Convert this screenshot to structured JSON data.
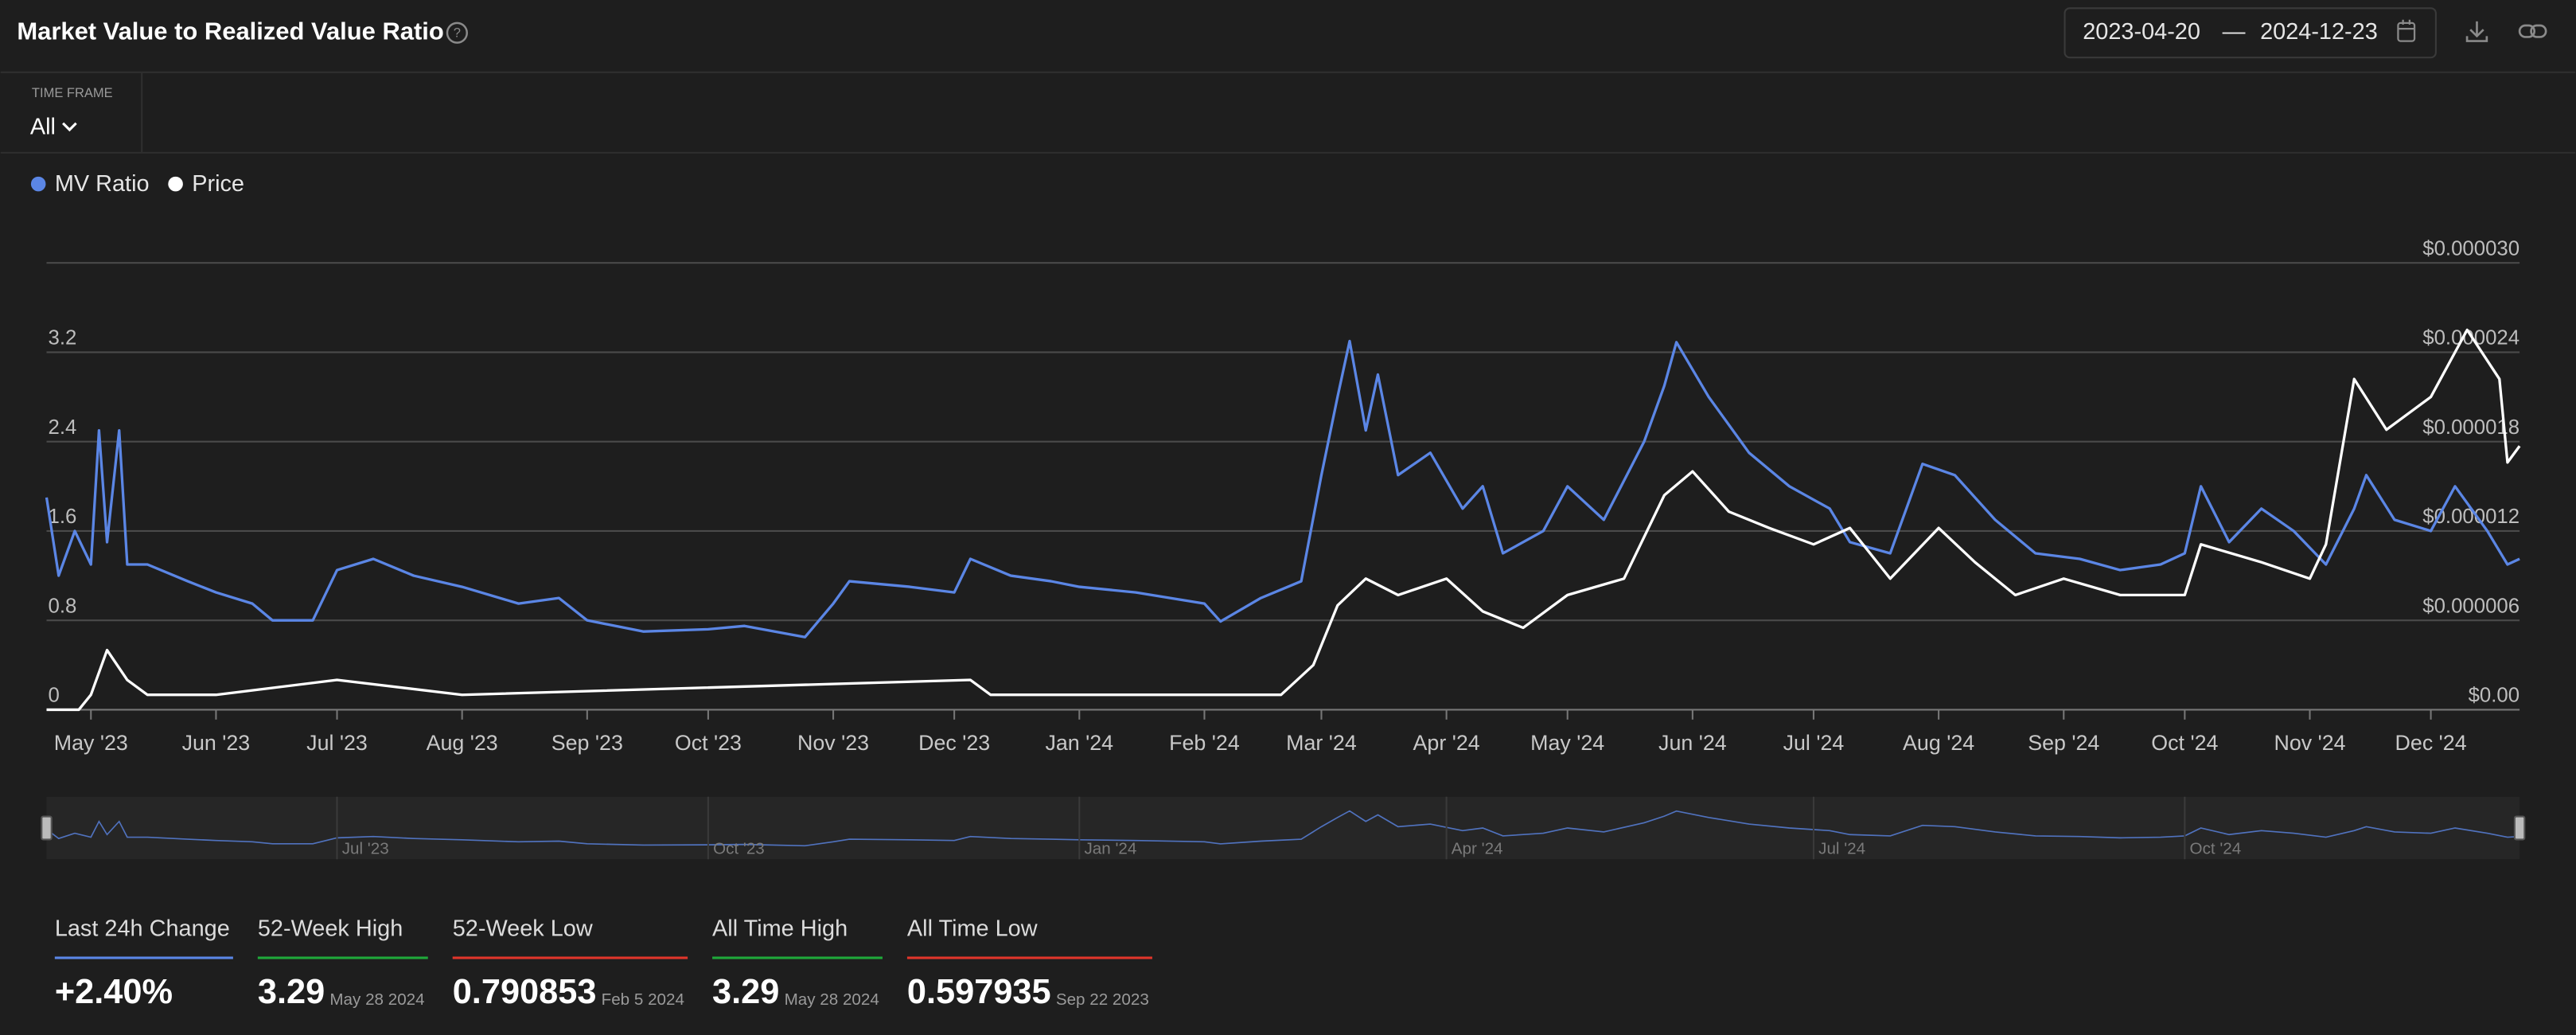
{
  "header": {
    "title": "Market Value to Realized Value Ratio",
    "date_start": "2023-04-20",
    "date_separator": "—",
    "date_end": "2024-12-23"
  },
  "timeframe": {
    "label": "TIME FRAME",
    "value": "All"
  },
  "chart_data": {
    "type": "line",
    "xlim": [
      "2023-04-20",
      "2024-12-23"
    ],
    "xticks": [
      {
        "value": "2023-05-01",
        "label": "May '23"
      },
      {
        "value": "2023-06-01",
        "label": "Jun '23"
      },
      {
        "value": "2023-07-01",
        "label": "Jul '23"
      },
      {
        "value": "2023-08-01",
        "label": "Aug '23"
      },
      {
        "value": "2023-09-01",
        "label": "Sep '23"
      },
      {
        "value": "2023-10-01",
        "label": "Oct '23"
      },
      {
        "value": "2023-11-01",
        "label": "Nov '23"
      },
      {
        "value": "2023-12-01",
        "label": "Dec '23"
      },
      {
        "value": "2024-01-01",
        "label": "Jan '24"
      },
      {
        "value": "2024-02-01",
        "label": "Feb '24"
      },
      {
        "value": "2024-03-01",
        "label": "Mar '24"
      },
      {
        "value": "2024-04-01",
        "label": "Apr '24"
      },
      {
        "value": "2024-05-01",
        "label": "May '24"
      },
      {
        "value": "2024-06-01",
        "label": "Jun '24"
      },
      {
        "value": "2024-07-01",
        "label": "Jul '24"
      },
      {
        "value": "2024-08-01",
        "label": "Aug '24"
      },
      {
        "value": "2024-09-01",
        "label": "Sep '24"
      },
      {
        "value": "2024-10-01",
        "label": "Oct '24"
      },
      {
        "value": "2024-11-01",
        "label": "Nov '24"
      },
      {
        "value": "2024-12-01",
        "label": "Dec '24"
      }
    ],
    "ylim": [
      0,
      4
    ],
    "yticks": [
      0,
      0.8,
      1.6,
      2.4,
      3.2
    ],
    "y2lim": [
      0,
      3e-05
    ],
    "y2ticks": [
      {
        "value": 0,
        "label": "$0.00"
      },
      {
        "value": 6e-06,
        "label": "$0.000006"
      },
      {
        "value": 1.2e-05,
        "label": "$0.000012"
      },
      {
        "value": 1.8e-05,
        "label": "$0.000018"
      },
      {
        "value": 2.4e-05,
        "label": "$0.000024"
      },
      {
        "value": 3e-05,
        "label": "$0.000030"
      }
    ],
    "grid": true,
    "series": [
      {
        "name": "MV Ratio",
        "color": "#5b86e5",
        "axis": "y",
        "x": [
          "2023-04-20",
          "2023-04-23",
          "2023-04-27",
          "2023-05-01",
          "2023-05-03",
          "2023-05-05",
          "2023-05-08",
          "2023-05-10",
          "2023-05-15",
          "2023-05-25",
          "2023-06-01",
          "2023-06-10",
          "2023-06-15",
          "2023-06-25",
          "2023-07-01",
          "2023-07-10",
          "2023-07-20",
          "2023-08-01",
          "2023-08-15",
          "2023-08-25",
          "2023-09-01",
          "2023-09-15",
          "2023-10-01",
          "2023-10-10",
          "2023-10-25",
          "2023-11-01",
          "2023-11-05",
          "2023-11-20",
          "2023-12-01",
          "2023-12-05",
          "2023-12-15",
          "2023-12-25",
          "2024-01-01",
          "2024-01-15",
          "2024-02-01",
          "2024-02-05",
          "2024-02-15",
          "2024-02-25",
          "2024-03-01",
          "2024-03-05",
          "2024-03-08",
          "2024-03-12",
          "2024-03-15",
          "2024-03-20",
          "2024-03-28",
          "2024-04-05",
          "2024-04-10",
          "2024-04-15",
          "2024-04-25",
          "2024-05-01",
          "2024-05-10",
          "2024-05-20",
          "2024-05-25",
          "2024-05-28",
          "2024-06-05",
          "2024-06-15",
          "2024-06-25",
          "2024-07-05",
          "2024-07-10",
          "2024-07-20",
          "2024-07-28",
          "2024-08-05",
          "2024-08-15",
          "2024-08-25",
          "2024-09-05",
          "2024-09-15",
          "2024-09-25",
          "2024-10-01",
          "2024-10-05",
          "2024-10-12",
          "2024-10-20",
          "2024-10-28",
          "2024-11-05",
          "2024-11-12",
          "2024-11-15",
          "2024-11-22",
          "2024-12-01",
          "2024-12-07",
          "2024-12-15",
          "2024-12-20",
          "2024-12-23"
        ],
        "values": [
          1.9,
          1.2,
          1.6,
          1.3,
          2.5,
          1.5,
          2.5,
          1.3,
          1.3,
          1.15,
          1.05,
          0.95,
          0.8,
          0.8,
          1.25,
          1.35,
          1.2,
          1.1,
          0.95,
          1.0,
          0.8,
          0.7,
          0.72,
          0.75,
          0.65,
          0.95,
          1.15,
          1.1,
          1.05,
          1.35,
          1.2,
          1.15,
          1.1,
          1.05,
          0.95,
          0.79,
          1.0,
          1.15,
          2.1,
          2.8,
          3.3,
          2.5,
          3.0,
          2.1,
          2.3,
          1.8,
          2.0,
          1.4,
          1.6,
          2.0,
          1.7,
          2.4,
          2.9,
          3.29,
          2.8,
          2.3,
          2.0,
          1.8,
          1.5,
          1.4,
          2.2,
          2.1,
          1.7,
          1.4,
          1.35,
          1.25,
          1.3,
          1.4,
          2.0,
          1.5,
          1.8,
          1.6,
          1.3,
          1.8,
          2.1,
          1.7,
          1.6,
          2.0,
          1.6,
          1.3,
          1.35
        ]
      },
      {
        "name": "Price",
        "color": "#ffffff",
        "axis": "y2",
        "x": [
          "2023-04-20",
          "2023-04-28",
          "2023-05-01",
          "2023-05-05",
          "2023-05-10",
          "2023-05-15",
          "2023-06-01",
          "2023-07-01",
          "2023-08-01",
          "2023-12-05",
          "2023-12-10",
          "2024-02-20",
          "2024-02-28",
          "2024-03-05",
          "2024-03-12",
          "2024-03-20",
          "2024-04-01",
          "2024-04-10",
          "2024-04-20",
          "2024-05-01",
          "2024-05-15",
          "2024-05-25",
          "2024-06-01",
          "2024-06-10",
          "2024-06-20",
          "2024-07-01",
          "2024-07-10",
          "2024-07-20",
          "2024-08-01",
          "2024-08-10",
          "2024-08-20",
          "2024-09-01",
          "2024-09-15",
          "2024-10-01",
          "2024-10-05",
          "2024-10-20",
          "2024-11-01",
          "2024-11-05",
          "2024-11-12",
          "2024-11-20",
          "2024-12-01",
          "2024-12-10",
          "2024-12-18",
          "2024-12-20",
          "2024-12-23"
        ],
        "values": [
          0,
          0,
          1e-06,
          4e-06,
          2e-06,
          1e-06,
          1e-06,
          2e-06,
          1e-06,
          2e-06,
          1e-06,
          1e-06,
          3e-06,
          7e-06,
          8.8e-06,
          7.7e-06,
          8.8e-06,
          6.6e-06,
          5.5e-06,
          7.7e-06,
          8.8e-06,
          1.44e-05,
          1.6e-05,
          1.33e-05,
          1.22e-05,
          1.11e-05,
          1.22e-05,
          8.8e-06,
          1.22e-05,
          9.9e-06,
          7.7e-06,
          8.8e-06,
          7.7e-06,
          7.7e-06,
          1.11e-05,
          9.9e-06,
          8.8e-06,
          1.11e-05,
          2.22e-05,
          1.88e-05,
          2.1e-05,
          2.55e-05,
          2.22e-05,
          1.66e-05,
          1.77e-05
        ]
      }
    ]
  },
  "navigator": {
    "labels": [
      "Jul '23",
      "Oct '23",
      "Jan '24",
      "Apr '24",
      "Jul '24",
      "Oct '24"
    ]
  },
  "stats": [
    {
      "label": "Last 24h Change",
      "value": "+2.40%",
      "color": "#5b86e5"
    },
    {
      "label": "52-Week High",
      "value": "3.29",
      "date": "May 28 2024",
      "color": "#1fa83a"
    },
    {
      "label": "52-Week Low",
      "value": "0.790853",
      "date": "Feb 5 2024",
      "color": "#e0352b"
    },
    {
      "label": "All Time High",
      "value": "3.29",
      "date": "May 28 2024",
      "color": "#1fa83a"
    },
    {
      "label": "All Time Low",
      "value": "0.597935",
      "date": "Sep 22 2023",
      "color": "#e0352b"
    }
  ]
}
